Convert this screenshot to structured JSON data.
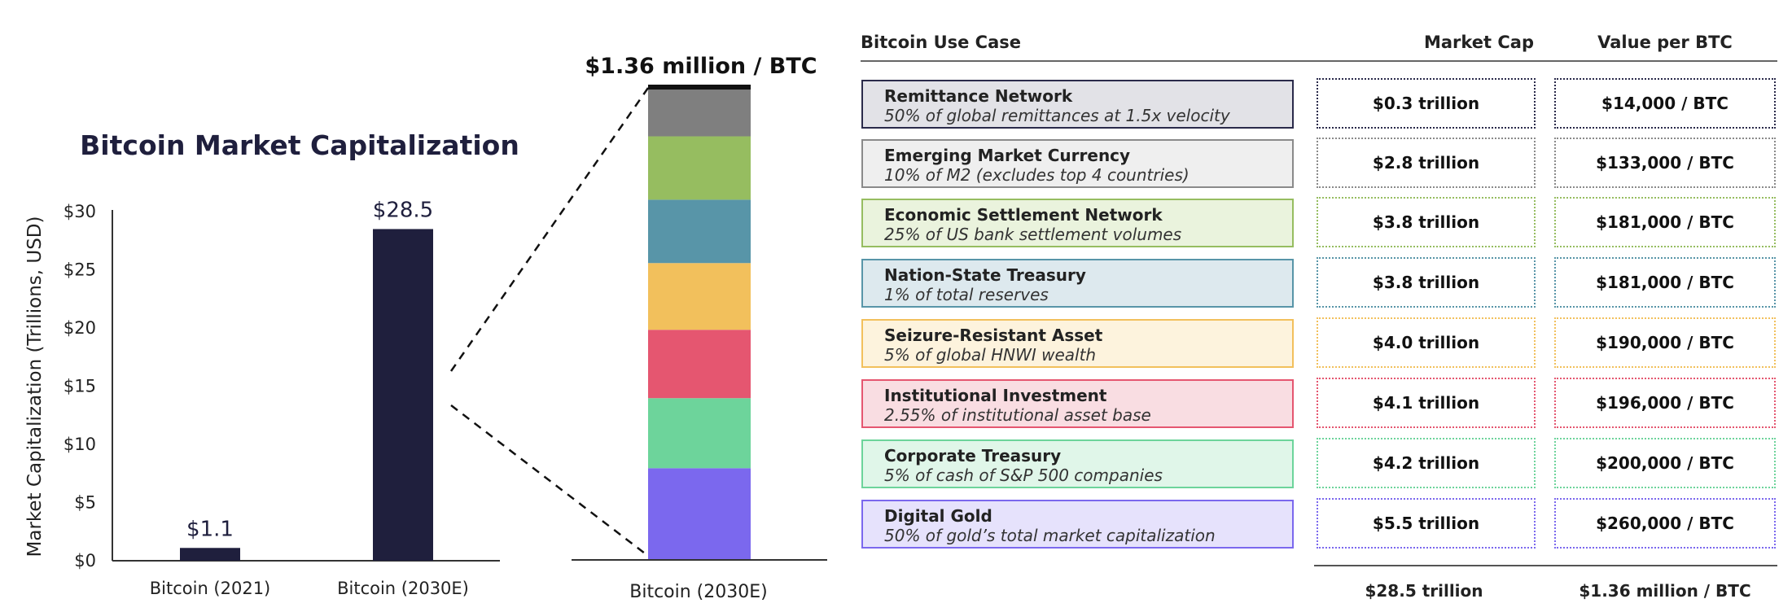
{
  "chart_data": [
    {
      "type": "bar",
      "title": "Bitcoin Market Capitalization",
      "ylabel": "Market Capitalization (Trillions, USD)",
      "categories": [
        "Bitcoin (2021)",
        "Bitcoin (2030E)"
      ],
      "values": [
        1.1,
        28.5
      ],
      "data_labels": [
        "$1.1",
        "$28.5"
      ],
      "ylim": [
        0,
        30
      ],
      "yticks": [
        "$0",
        "$5",
        "$10",
        "$15",
        "$20",
        "$25",
        "$30"
      ],
      "bar_color": "#1f1f3d",
      "grid": false
    },
    {
      "type": "bar",
      "subtype": "stacked",
      "title": "$1.36 million / BTC",
      "categories": [
        "Bitcoin (2030E)"
      ],
      "series": [
        {
          "name": "Digital Gold",
          "values": [
            5.5
          ],
          "color": "#7b68ee"
        },
        {
          "name": "Corporate Treasury",
          "values": [
            4.2
          ],
          "color": "#6dd49b"
        },
        {
          "name": "Institutional Investment",
          "values": [
            4.1
          ],
          "color": "#e55670"
        },
        {
          "name": "Seizure-Resistant Asset",
          "values": [
            4.0
          ],
          "color": "#f2c05c"
        },
        {
          "name": "Nation-State Treasury",
          "values": [
            3.8
          ],
          "color": "#5895a8"
        },
        {
          "name": "Economic Settlement Network",
          "values": [
            3.8
          ],
          "color": "#96bd60"
        },
        {
          "name": "Emerging Market Currency",
          "values": [
            2.8
          ],
          "color": "#7f7f7f"
        },
        {
          "name": "Remittance Network",
          "values": [
            0.3
          ],
          "color": "#111111"
        }
      ],
      "grid": false
    },
    {
      "type": "table",
      "columns": [
        "Bitcoin Use Case",
        "Market Cap",
        "Value per BTC"
      ],
      "rows": [
        {
          "use_case": "Remittance Network",
          "assumption": "50% of global remittances at 1.5x velocity",
          "market_cap": "$0.3 trillion",
          "value_per_btc": "$14,000 / BTC",
          "color": "#2a2a4a",
          "fill": "#e2e2e7"
        },
        {
          "use_case": "Emerging Market Currency",
          "assumption": "10% of M2 (excludes top 4 countries)",
          "market_cap": "$2.8 trillion",
          "value_per_btc": "$133,000 / BTC",
          "color": "#8a8a8a",
          "fill": "#efefef"
        },
        {
          "use_case": "Economic Settlement Network",
          "assumption": "25% of US bank settlement volumes",
          "market_cap": "$3.8 trillion",
          "value_per_btc": "$181,000 / BTC",
          "color": "#96bd60",
          "fill": "#eaf3dd"
        },
        {
          "use_case": "Nation-State Treasury",
          "assumption": "1% of total reserves",
          "market_cap": "$3.8 trillion",
          "value_per_btc": "$181,000 / BTC",
          "color": "#5895a8",
          "fill": "#dde9ee"
        },
        {
          "use_case": "Seizure-Resistant Asset",
          "assumption": "5% of global HNWI wealth",
          "market_cap": "$4.0 trillion",
          "value_per_btc": "$190,000 / BTC",
          "color": "#f2c05c",
          "fill": "#fdf3dd"
        },
        {
          "use_case": "Institutional Investment",
          "assumption": "2.55% of institutional asset base",
          "market_cap": "$4.1 trillion",
          "value_per_btc": "$196,000 / BTC",
          "color": "#e55670",
          "fill": "#f9dde2"
        },
        {
          "use_case": "Corporate Treasury",
          "assumption": "5% of cash of S&P 500 companies",
          "market_cap": "$4.2 trillion",
          "value_per_btc": "$200,000 / BTC",
          "color": "#6dd49b",
          "fill": "#e0f6e9"
        },
        {
          "use_case": "Digital Gold",
          "assumption": "50% of gold’s total market capitalization",
          "market_cap": "$5.5 trillion",
          "value_per_btc": "$260,000 / BTC",
          "color": "#7b68ee",
          "fill": "#e6e2fc"
        }
      ],
      "totals": {
        "market_cap": "$28.5 trillion",
        "value_per_btc": "$1.36 million / BTC"
      }
    }
  ]
}
